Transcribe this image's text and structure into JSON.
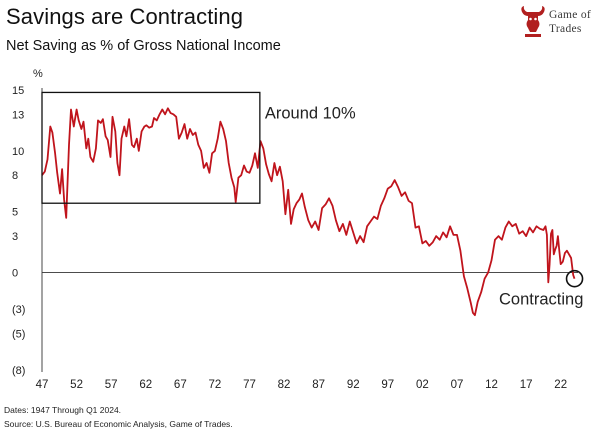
{
  "header": {
    "title": "Savings are Contracting",
    "subtitle": "Net Saving as % of Gross National Income"
  },
  "logo": {
    "line1": "Game of",
    "line2": "Trades",
    "color": "#b11f1f"
  },
  "footer": {
    "dates": "Dates: 1947 Through Q1 2024.",
    "source": "Source: U.S. Bureau of Economic Analysis, Game of Trades."
  },
  "chart_data": {
    "type": "line",
    "title": "Savings are Contracting",
    "subtitle": "Net Saving as % of Gross National Income",
    "ylabel": "%",
    "xlabel": "",
    "ylim": [
      -8,
      15
    ],
    "xlim": [
      1947,
      2024.5
    ],
    "ytick_values": [
      15,
      13,
      10,
      8,
      5,
      3,
      0,
      -3,
      -5,
      -8
    ],
    "ytick_labels": [
      "15",
      "13",
      "10",
      "8",
      "5",
      "3",
      "0",
      "(3)",
      "(5)",
      "(8)"
    ],
    "xtick_values": [
      1947,
      1952,
      1957,
      1962,
      1967,
      1972,
      1977,
      1982,
      1987,
      1992,
      1997,
      2002,
      2007,
      2012,
      2017,
      2022
    ],
    "xtick_labels": [
      "47",
      "52",
      "57",
      "62",
      "67",
      "72",
      "77",
      "82",
      "87",
      "92",
      "97",
      "02",
      "07",
      "12",
      "17",
      "22"
    ],
    "grid": false,
    "line_color": "#c0141c",
    "annotations": [
      {
        "text": "Around 10%",
        "type": "box",
        "x_range": [
          1947,
          1978.5
        ],
        "y_range": [
          5.7,
          14.8
        ]
      },
      {
        "text": "Contracting",
        "type": "circle",
        "x": 2024,
        "y": -0.5
      }
    ],
    "series": [
      {
        "x": [
          1947.0,
          1947.4,
          1947.8,
          1948.2,
          1948.5,
          1948.9,
          1949.2,
          1949.6,
          1949.9,
          1950.2,
          1950.5,
          1950.9,
          1951.2,
          1951.6,
          1952.0,
          1952.3,
          1952.7,
          1953.0,
          1953.4,
          1953.7,
          1954.0,
          1954.4,
          1954.8,
          1955.1,
          1955.5,
          1955.8,
          1956.2,
          1956.5,
          1956.9,
          1957.2,
          1957.6,
          1957.9,
          1958.2,
          1958.5,
          1958.9,
          1959.2,
          1959.6,
          1960.0,
          1960.3,
          1960.7,
          1961.0,
          1961.4,
          1961.8,
          1962.1,
          1962.5,
          1962.9,
          1963.2,
          1963.6,
          1964.0,
          1964.4,
          1964.8,
          1965.2,
          1965.6,
          1966.0,
          1966.4,
          1966.8,
          1967.2,
          1967.6,
          1968.0,
          1968.4,
          1968.8,
          1969.2,
          1969.6,
          1970.0,
          1970.4,
          1970.8,
          1971.2,
          1971.6,
          1972.0,
          1972.4,
          1972.8,
          1973.2,
          1973.6,
          1974.0,
          1974.4,
          1974.8,
          1975.0,
          1975.4,
          1975.8,
          1976.2,
          1976.6,
          1977.0,
          1977.4,
          1977.8,
          1978.2,
          1978.6,
          1979.0,
          1979.4,
          1979.8,
          1980.2,
          1980.6,
          1981.0,
          1981.4,
          1981.8,
          1982.2,
          1982.6,
          1983.0,
          1983.4,
          1983.8,
          1984.2,
          1984.6,
          1985.0,
          1985.5,
          1986.0,
          1986.5,
          1987.0,
          1987.5,
          1988.0,
          1988.5,
          1989.0,
          1989.5,
          1990.0,
          1990.5,
          1991.0,
          1991.5,
          1992.0,
          1992.5,
          1993.0,
          1993.5,
          1994.0,
          1994.5,
          1995.0,
          1995.5,
          1996.0,
          1996.5,
          1997.0,
          1997.5,
          1998.0,
          1998.5,
          1999.0,
          1999.5,
          2000.0,
          2000.5,
          2001.0,
          2001.5,
          2002.0,
          2002.5,
          2003.0,
          2003.5,
          2004.0,
          2004.5,
          2005.0,
          2005.5,
          2006.0,
          2006.5,
          2007.0,
          2007.5,
          2008.0,
          2008.5,
          2009.0,
          2009.3,
          2009.6,
          2010.0,
          2010.5,
          2011.0,
          2011.5,
          2012.0,
          2012.5,
          2013.0,
          2013.5,
          2014.0,
          2014.5,
          2015.0,
          2015.5,
          2016.0,
          2016.5,
          2017.0,
          2017.5,
          2018.0,
          2018.5,
          2019.0,
          2019.5,
          2019.8,
          2020.0,
          2020.2,
          2020.4,
          2020.6,
          2020.8,
          2021.0,
          2021.2,
          2021.4,
          2021.6,
          2021.8,
          2022.0,
          2022.3,
          2022.6,
          2022.9,
          2023.2,
          2023.5,
          2023.8,
          2024.0
        ],
        "y": [
          8.0,
          8.3,
          9.3,
          12.0,
          11.5,
          9.8,
          8.2,
          6.5,
          8.5,
          6.0,
          4.5,
          10.5,
          13.4,
          12.0,
          13.4,
          12.5,
          11.8,
          12.4,
          10.2,
          11.0,
          9.5,
          9.1,
          10.2,
          12.5,
          12.3,
          12.6,
          11.2,
          10.9,
          9.5,
          12.8,
          11.6,
          9.0,
          8.0,
          11.0,
          12.0,
          11.2,
          12.6,
          10.5,
          10.3,
          11.0,
          10.0,
          11.6,
          12.0,
          12.1,
          11.9,
          12.0,
          12.7,
          12.5,
          13.0,
          13.4,
          13.0,
          13.5,
          13.1,
          13.0,
          12.8,
          11.0,
          11.5,
          12.2,
          11.0,
          11.8,
          11.3,
          11.5,
          10.5,
          10.0,
          8.6,
          9.0,
          8.2,
          9.8,
          10.0,
          11.0,
          12.4,
          11.8,
          10.8,
          9.0,
          7.8,
          7.0,
          5.8,
          7.8,
          8.0,
          8.8,
          8.3,
          8.2,
          8.8,
          9.8,
          8.6,
          10.8,
          10.2,
          8.9,
          8.1,
          7.5,
          9.0,
          8.0,
          8.7,
          7.5,
          4.8,
          6.8,
          4.0,
          5.2,
          5.7,
          6.0,
          6.5,
          5.4,
          4.3,
          3.7,
          4.2,
          3.5,
          5.3,
          5.6,
          6.1,
          5.5,
          4.3,
          3.4,
          4.0,
          3.1,
          4.2,
          3.3,
          2.4,
          3.0,
          2.5,
          3.8,
          4.2,
          4.6,
          4.4,
          5.5,
          6.1,
          6.9,
          7.1,
          7.6,
          7.0,
          6.3,
          6.6,
          5.9,
          5.7,
          3.7,
          3.8,
          2.4,
          2.6,
          2.2,
          2.5,
          3.0,
          2.7,
          3.3,
          2.9,
          3.8,
          3.1,
          3.1,
          1.8,
          -0.3,
          -1.3,
          -2.5,
          -3.3,
          -3.5,
          -2.4,
          -1.6,
          -0.5,
          0.0,
          1.0,
          2.7,
          3.0,
          2.7,
          3.7,
          4.2,
          3.8,
          4.0,
          3.2,
          3.4,
          3.0,
          3.7,
          3.3,
          3.8,
          3.6,
          3.5,
          3.8,
          3.1,
          -0.8,
          0.7,
          3.2,
          3.5,
          1.5,
          1.9,
          2.2,
          3.0,
          1.8,
          0.7,
          0.9,
          1.6,
          1.8,
          1.5,
          1.2,
          -0.2,
          -0.5
        ]
      }
    ]
  }
}
